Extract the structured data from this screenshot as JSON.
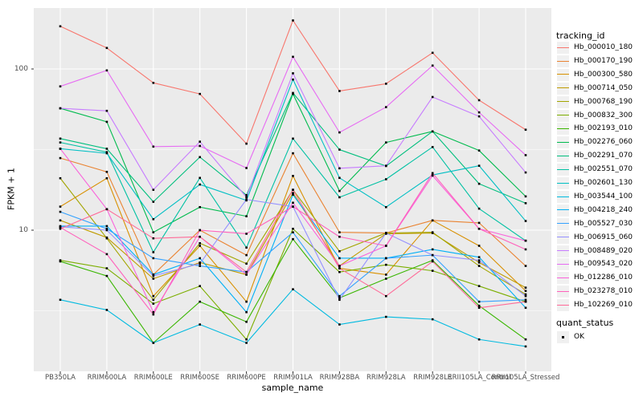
{
  "figure": {
    "background": "#FFFFFF",
    "panel_background": "#EBEBEB",
    "grid_color": "#FFFFFF",
    "tick_text_color": "#4D4D4D"
  },
  "chart_data": {
    "type": "line",
    "xlabel": "sample_name",
    "ylabel": "FPKM + 1",
    "y_scale": "log10",
    "y_ticks": [
      10,
      100
    ],
    "y_minor_gridlines": [
      3.162,
      31.62
    ],
    "ylim": [
      1.33,
      240
    ],
    "grid": "on",
    "legend_position": "right",
    "categories": [
      "PB350LA",
      "RRIM600LA",
      "RRIM600LE",
      "RRIM600SE",
      "RRIM600PE",
      "RRIM901LA",
      "RRIM928BA",
      "RRIM928LA",
      "RRIM928LE",
      "RRII105LA_Control",
      "RRII105LA_Stressed"
    ],
    "series": [
      {
        "name": "Hb_000010_180",
        "color": "#F8766D",
        "values": [
          184,
          135,
          82,
          70,
          34.4,
          200,
          73,
          81,
          126,
          64,
          42
        ]
      },
      {
        "name": "Hb_000170_190",
        "color": "#EA8331",
        "values": [
          28,
          23,
          5.3,
          10,
          7.0,
          30,
          9.7,
          9.6,
          11.5,
          11.1,
          6.0
        ]
      },
      {
        "name": "Hb_000300_580",
        "color": "#D89000",
        "values": [
          14,
          21,
          3.9,
          8.0,
          3.6,
          21.7,
          5.8,
          5.3,
          11.5,
          8.0,
          4.2
        ]
      },
      {
        "name": "Hb_000714_050",
        "color": "#C09B00",
        "values": [
          11.5,
          9.0,
          5.0,
          6.3,
          5.3,
          17,
          6.0,
          9.5,
          9.6,
          6.3,
          4.4
        ]
      },
      {
        "name": "Hb_000768_190",
        "color": "#A3A500",
        "values": [
          21,
          8.9,
          3.7,
          8.3,
          6.2,
          17.8,
          7.4,
          9.6,
          9.7,
          6.0,
          4.0
        ]
      },
      {
        "name": "Hb_000832_300",
        "color": "#7CAE00",
        "values": [
          6.5,
          5.8,
          3.5,
          4.5,
          2.1,
          10.2,
          5.5,
          6.1,
          5.6,
          4.5,
          3.6
        ]
      },
      {
        "name": "Hb_002193_010",
        "color": "#39B600",
        "values": [
          6.4,
          5.2,
          2.0,
          3.6,
          2.7,
          8.8,
          3.8,
          5.0,
          6.5,
          3.4,
          2.1
        ]
      },
      {
        "name": "Hb_002276_060",
        "color": "#00BB4E",
        "values": [
          57,
          47,
          9.7,
          13.9,
          12.2,
          70,
          17.5,
          35,
          41,
          31.2,
          16.2
        ]
      },
      {
        "name": "Hb_002291_070",
        "color": "#00BF7D",
        "values": [
          37,
          32,
          15,
          28.4,
          16.5,
          71,
          31.6,
          25,
          41,
          19.4,
          14.7
        ]
      },
      {
        "name": "Hb_002551_070",
        "color": "#00C1A3",
        "values": [
          35,
          30.5,
          7.3,
          21.1,
          7.8,
          37,
          16,
          20.7,
          32.8,
          13.6,
          8.6
        ]
      },
      {
        "name": "Hb_002601_130",
        "color": "#00BFC4",
        "values": [
          32,
          30,
          11.7,
          19.2,
          15.3,
          86,
          21.1,
          13.9,
          22,
          25.1,
          11.4
        ]
      },
      {
        "name": "Hb_003544_100",
        "color": "#00BAE0",
        "values": [
          3.7,
          3.2,
          2.0,
          2.6,
          2.0,
          4.3,
          2.6,
          2.9,
          2.8,
          2.1,
          1.9
        ]
      },
      {
        "name": "Hb_004218_240",
        "color": "#00B0F6",
        "values": [
          10.6,
          10.6,
          5.3,
          6.7,
          3.1,
          16.6,
          6.7,
          6.7,
          7.6,
          6.8,
          3.3
        ]
      },
      {
        "name": "Hb_005527_030",
        "color": "#35A2FF",
        "values": [
          13,
          10.2,
          6.7,
          6.0,
          5.5,
          9.7,
          3.9,
          6.7,
          7.0,
          3.6,
          3.7
        ]
      },
      {
        "name": "Hb_006915_060",
        "color": "#9590FF",
        "values": [
          10.5,
          10.0,
          5.2,
          6.2,
          15.5,
          14,
          3.7,
          9.6,
          7.0,
          6.5,
          3.9
        ]
      },
      {
        "name": "Hb_008489_020",
        "color": "#C77CFF",
        "values": [
          57,
          55,
          17.8,
          35.4,
          16,
          94,
          24.2,
          25.1,
          67,
          50.8,
          22.8
        ]
      },
      {
        "name": "Hb_009543_020",
        "color": "#E76BF3",
        "values": [
          78,
          98,
          33,
          33.3,
          24.3,
          119,
          40.4,
          58,
          105,
          53.8,
          29.2
        ]
      },
      {
        "name": "Hb_012286_010",
        "color": "#FA62DB",
        "values": [
          32,
          13.5,
          3.1,
          9.1,
          5.3,
          14.8,
          6.0,
          8.0,
          21.8,
          10.2,
          8.6
        ]
      },
      {
        "name": "Hb_023278_010",
        "color": "#FF62BC",
        "values": [
          10.4,
          7.1,
          3.0,
          10.0,
          9.5,
          14.0,
          9.1,
          8.0,
          22.6,
          10.2,
          7.6
        ]
      },
      {
        "name": "Hb_102269_010",
        "color": "#FF6A98",
        "values": [
          10.2,
          13.5,
          8.9,
          9.1,
          5.5,
          17.8,
          5.8,
          3.9,
          6.4,
          3.3,
          3.6
        ]
      }
    ],
    "legend": {
      "title": "tracking_id",
      "quant_title": "quant_status",
      "quant_items": [
        "OK"
      ],
      "marker": {
        "shape": "square",
        "color": "#000000"
      }
    }
  }
}
